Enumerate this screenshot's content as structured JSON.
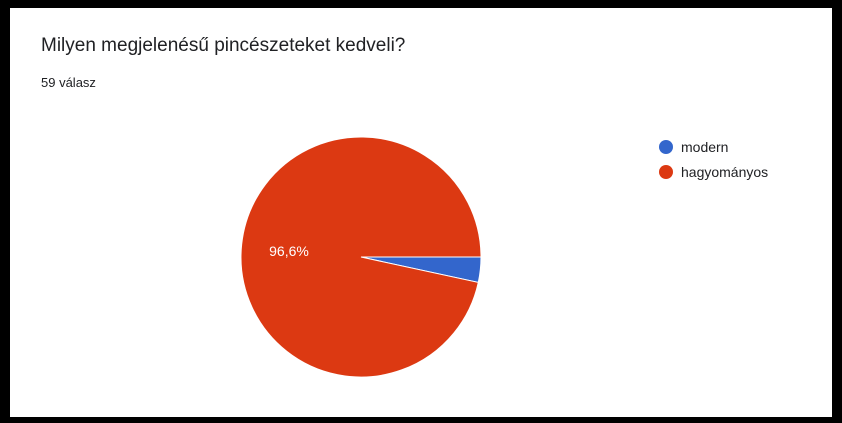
{
  "title": "Milyen megjelenésű pincészeteket kedveli?",
  "subtitle": "59 válasz",
  "chart_data": {
    "type": "pie",
    "title": "Milyen megjelenésű pincészeteket kedveli?",
    "total_responses": 59,
    "categories": [
      "modern",
      "hagyományos"
    ],
    "values": [
      3.4,
      96.6
    ],
    "colors": [
      "#3366cc",
      "#dc3912"
    ],
    "data_labels": [
      "",
      "96,6%"
    ],
    "legend_position": "right"
  }
}
